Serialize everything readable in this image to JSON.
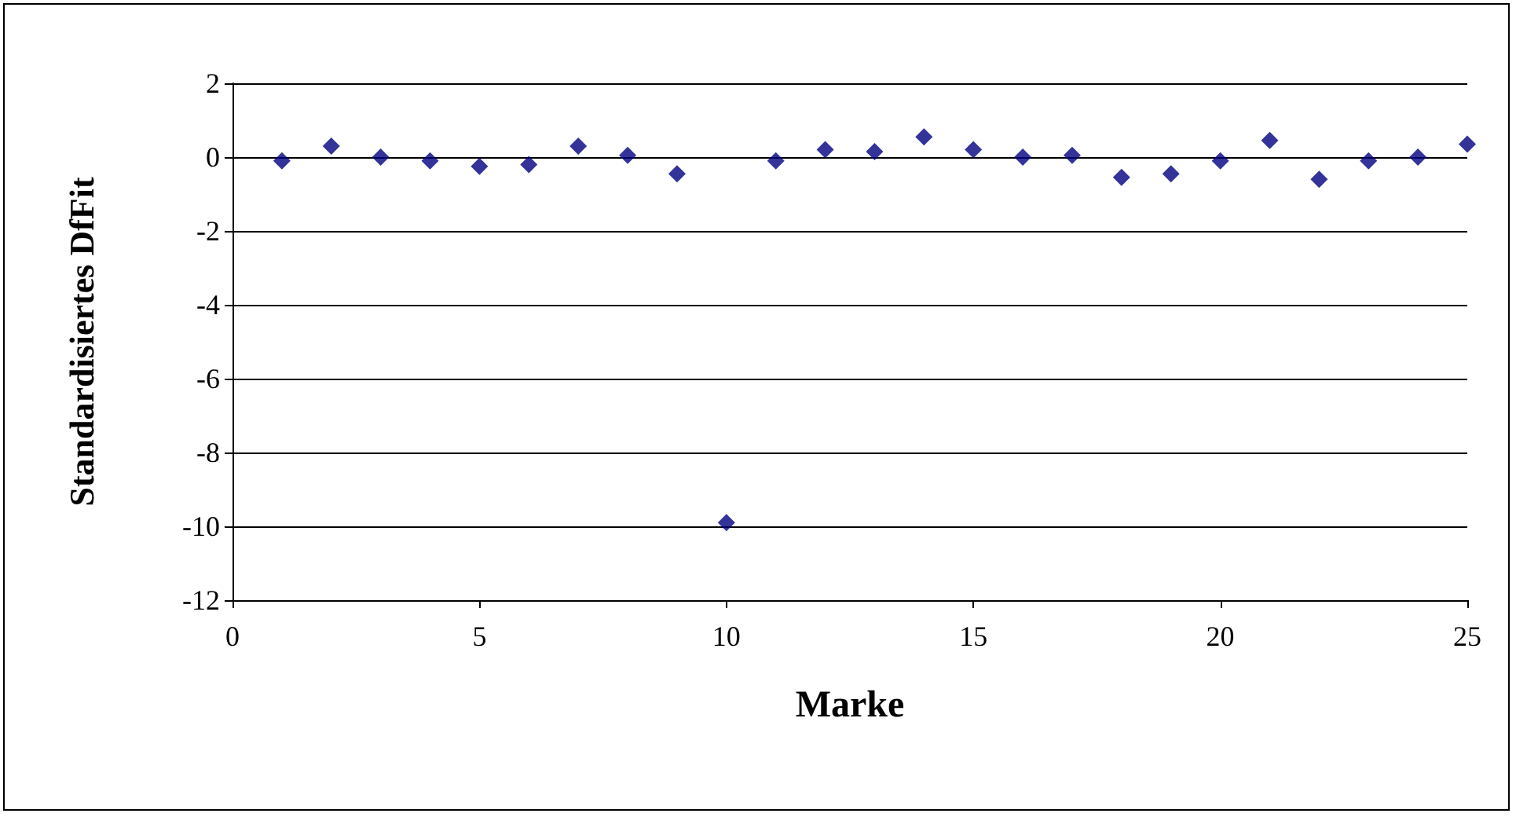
{
  "chart_data": {
    "type": "scatter",
    "xlabel": "Marke",
    "ylabel": "Standardisiertes DfFit",
    "x": [
      1,
      2,
      3,
      4,
      5,
      6,
      7,
      8,
      9,
      10,
      11,
      12,
      13,
      14,
      15,
      16,
      17,
      18,
      19,
      20,
      21,
      22,
      23,
      24,
      25
    ],
    "series": [
      {
        "color": "#000080",
        "values": [
          -0.1,
          0.3,
          0.0,
          -0.1,
          -0.25,
          -0.2,
          0.3,
          0.05,
          -0.45,
          -9.9,
          -0.1,
          0.2,
          0.15,
          0.55,
          0.2,
          0.0,
          0.05,
          -0.55,
          -0.45,
          -0.1,
          0.45,
          -0.6,
          -0.1,
          0.0,
          0.35
        ]
      }
    ],
    "xlim": [
      0,
      25
    ],
    "xticks": [
      0,
      5,
      10,
      15,
      20,
      25
    ],
    "ylim": [
      -12,
      2
    ],
    "yticks": [
      -12,
      -10,
      -8,
      -6,
      -4,
      -2,
      0,
      2
    ],
    "grid": "y",
    "marker": "diamond"
  }
}
